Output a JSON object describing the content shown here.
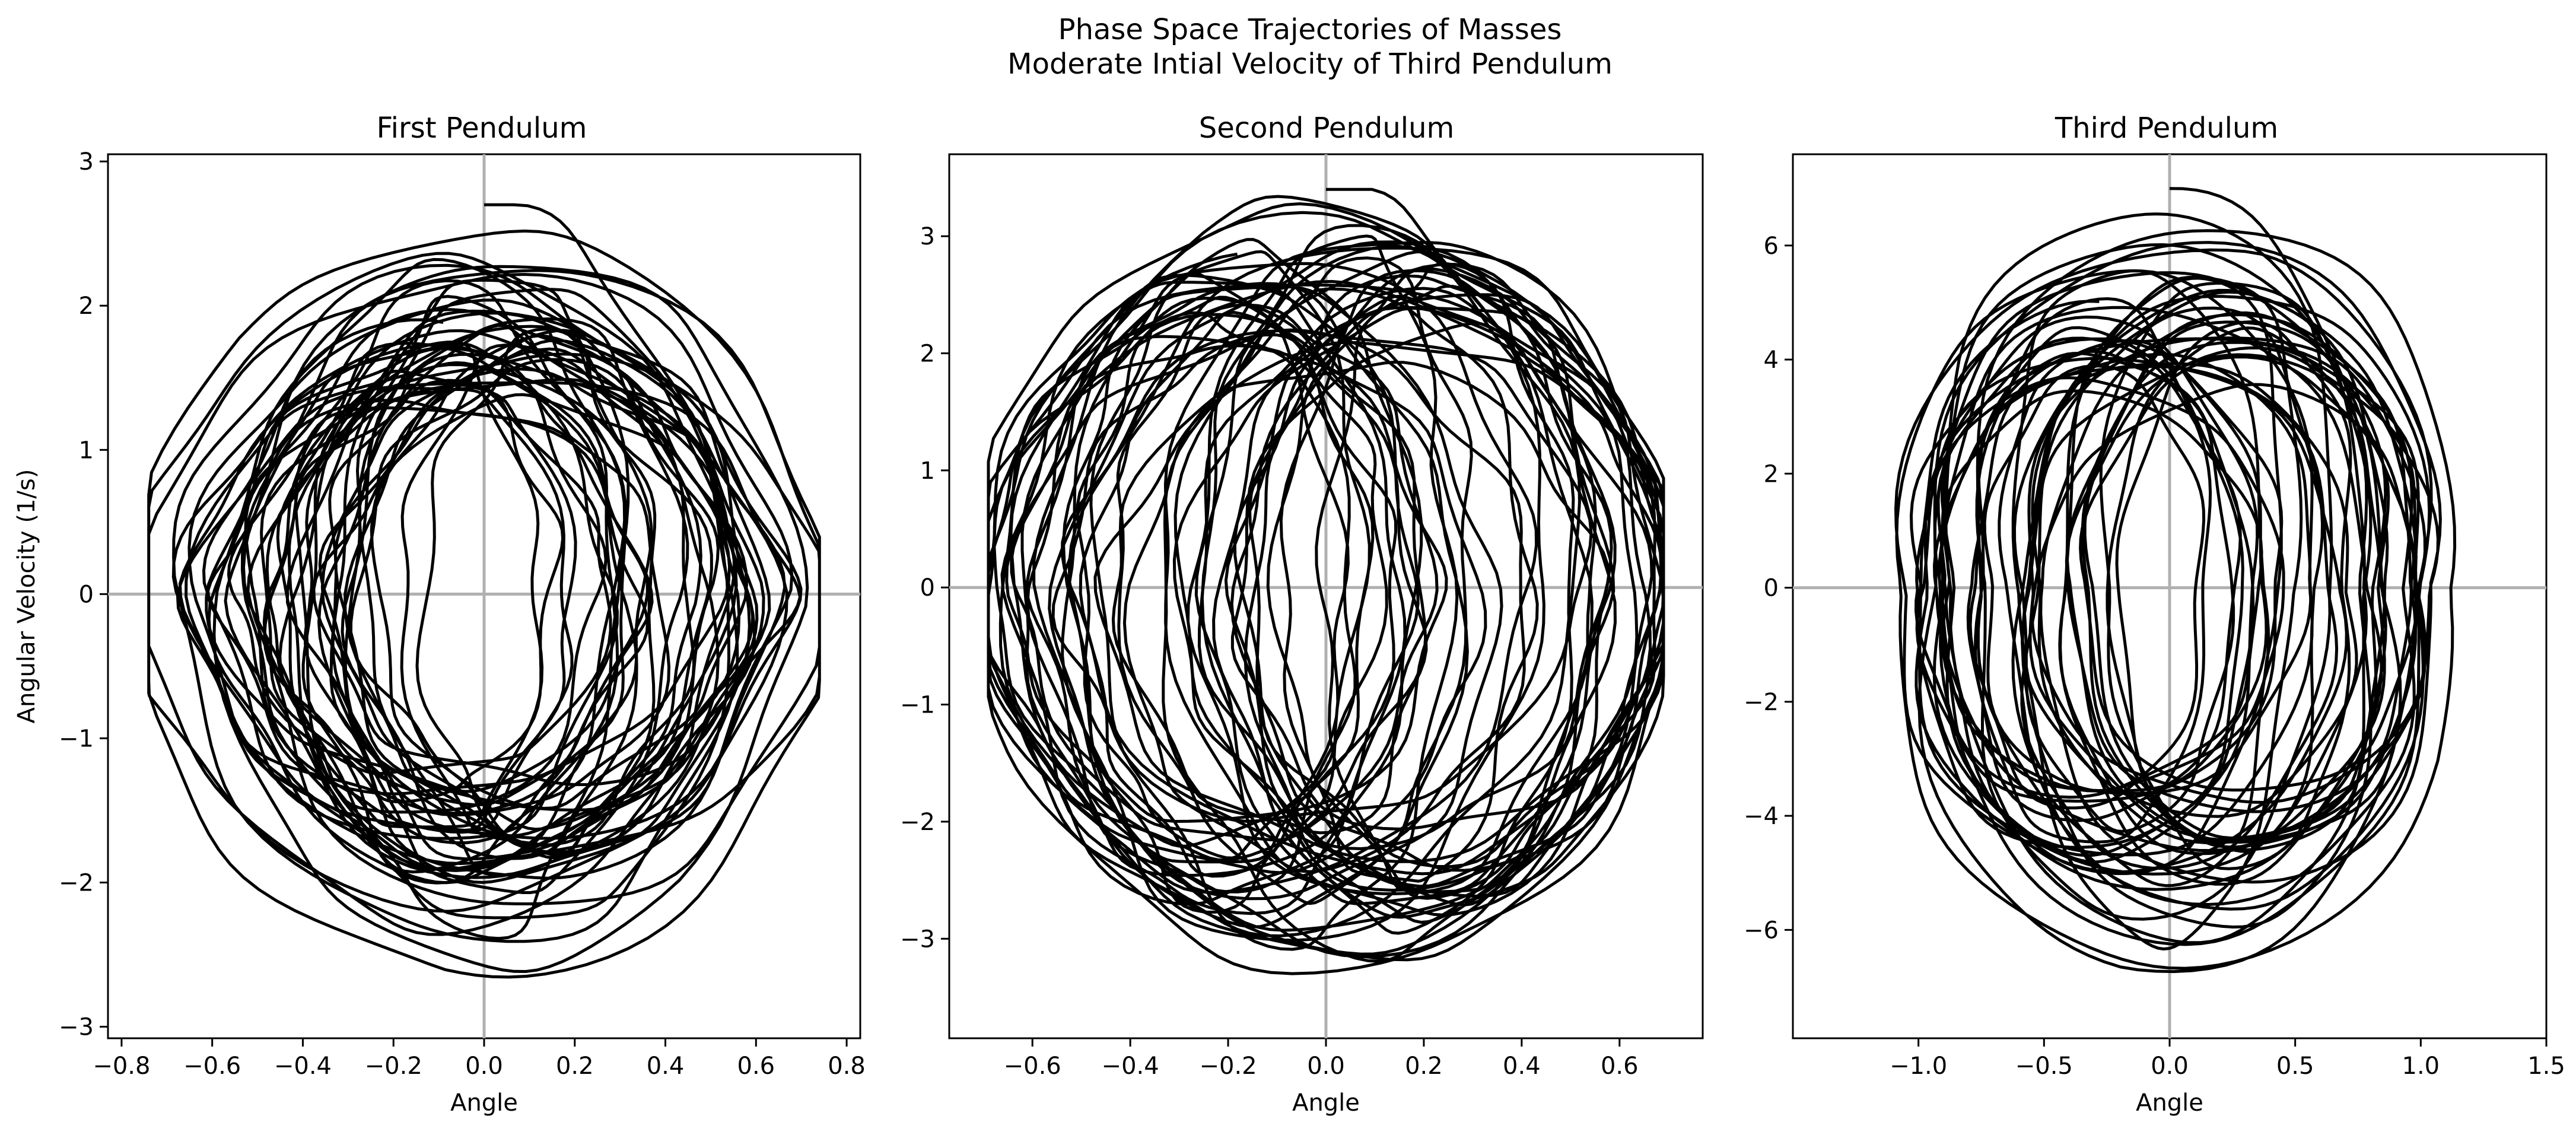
{
  "figure": {
    "suptitle_line1": "Phase Space Trajectories of Masses",
    "suptitle_line2": "Moderate Intial Velocity of Third Pendulum"
  },
  "chart_data": [
    {
      "type": "line",
      "title": "First Pendulum",
      "xlabel": "Angle",
      "ylabel": "Angular Velocity (1/s)",
      "xlim": [
        -0.83,
        0.83
      ],
      "ylim": [
        -3.08,
        3.05
      ],
      "xticks": [
        -0.8,
        -0.6,
        -0.4,
        -0.2,
        0.0,
        0.2,
        0.4,
        0.6,
        0.8
      ],
      "xtick_labels": [
        "−0.8",
        "−0.6",
        "−0.4",
        "−0.2",
        "0.0",
        "0.2",
        "0.4",
        "0.6",
        "0.8"
      ],
      "yticks": [
        -3,
        -2,
        -1,
        0,
        1,
        2,
        3
      ],
      "ytick_labels": [
        "−3",
        "−2",
        "−1",
        "0",
        "1",
        "2",
        "3"
      ],
      "line_color": "#000000",
      "reference_line_color": "#b0b0b0",
      "reference_lines": {
        "x": 0,
        "y": 0
      },
      "trajectory": {
        "amp_x": 0.74,
        "amp_y": 2.7,
        "x_offset": 0.0,
        "wobble": 0.09,
        "bulge": 0.15,
        "inner_lobe_center": 0.2,
        "inner_lobe_rx": 0.17,
        "inner_lobe_ry": 1.1,
        "mode_ratio": 2.31,
        "samples": 5200,
        "turns": 46
      }
    },
    {
      "type": "line",
      "title": "Second Pendulum",
      "xlabel": "Angle",
      "ylabel": "",
      "xlim": [
        -0.77,
        0.77
      ],
      "ylim": [
        -3.85,
        3.7
      ],
      "xticks": [
        -0.6,
        -0.4,
        -0.2,
        0.0,
        0.2,
        0.4,
        0.6
      ],
      "xtick_labels": [
        "−0.6",
        "−0.4",
        "−0.2",
        "0.0",
        "0.2",
        "0.4",
        "0.6"
      ],
      "yticks": [
        -3,
        -2,
        -1,
        0,
        1,
        2,
        3
      ],
      "ytick_labels": [
        "−3",
        "−2",
        "−1",
        "0",
        "1",
        "2",
        "3"
      ],
      "line_color": "#000000",
      "reference_line_color": "#b0b0b0",
      "reference_lines": {
        "x": 0,
        "y": 0
      },
      "trajectory": {
        "amp_x": 0.69,
        "amp_y": 3.4,
        "x_offset": 0.0,
        "wobble": 0.08,
        "bulge": 0.1,
        "inner_lobe_center": 0.4,
        "inner_lobe_rx": 0.22,
        "inner_lobe_ry": 2.2,
        "mode_ratio": 2.71,
        "samples": 5200,
        "turns": 48
      }
    },
    {
      "type": "line",
      "title": "Third Pendulum",
      "xlabel": "Angle",
      "ylabel": "",
      "xlim": [
        -1.5,
        1.5
      ],
      "ylim": [
        -7.9,
        7.6
      ],
      "xticks": [
        -1.0,
        -0.5,
        0.0,
        0.5,
        1.0,
        1.5
      ],
      "xtick_labels": [
        "−1.0",
        "−0.5",
        "0.0",
        "0.5",
        "1.0",
        "1.5"
      ],
      "yticks": [
        -6,
        -4,
        -2,
        0,
        2,
        4,
        6
      ],
      "ytick_labels": [
        "−6",
        "−4",
        "−2",
        "0",
        "2",
        "4",
        "6"
      ],
      "line_color": "#000000",
      "reference_line_color": "#b0b0b0",
      "reference_lines": {
        "x": 0,
        "y": 0
      },
      "trajectory": {
        "amp_x": 1.35,
        "amp_y": 7.0,
        "x_offset": 0.0,
        "wobble": 0.05,
        "bulge": -0.18,
        "inner_lobe_center": 0.6,
        "inner_lobe_rx": 0.5,
        "inner_lobe_ry": 3.0,
        "mode_ratio": 2.13,
        "samples": 5200,
        "turns": 44
      }
    }
  ]
}
